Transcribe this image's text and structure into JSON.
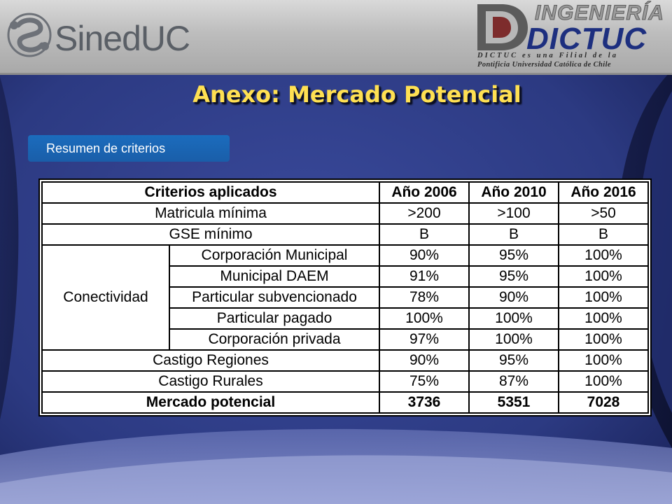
{
  "header": {
    "left_logo_text": "SinedUC",
    "right_logo": {
      "top_word": "INGENIERÍA",
      "main_word": "DICTUC",
      "line1": "DICTUC es una Filial de la",
      "line2": "Pontificia Universidad Católica de Chile"
    }
  },
  "title": "Anexo: Mercado Potencial",
  "section_label": "Resumen de criterios",
  "table": {
    "headers": [
      "Criterios aplicados",
      "Año 2006",
      "Año 2010",
      "Año 2016"
    ],
    "rows": [
      {
        "label": "Matricula mínima",
        "values": [
          ">200",
          ">100",
          ">50"
        ]
      },
      {
        "label": "GSE mínimo",
        "values": [
          "B",
          "B",
          "B"
        ]
      }
    ],
    "group": {
      "label": "Conectividad",
      "rows": [
        {
          "label": "Corporación Municipal",
          "values": [
            "90%",
            "95%",
            "100%"
          ]
        },
        {
          "label": "Municipal DAEM",
          "values": [
            "91%",
            "95%",
            "100%"
          ]
        },
        {
          "label": "Particular subvencionado",
          "values": [
            "78%",
            "90%",
            "100%"
          ]
        },
        {
          "label": "Particular pagado",
          "values": [
            "100%",
            "100%",
            "100%"
          ]
        },
        {
          "label": "Corporación privada",
          "values": [
            "97%",
            "100%",
            "100%"
          ]
        }
      ]
    },
    "rows_after": [
      {
        "label": "Castigo Regiones",
        "values": [
          "90%",
          "95%",
          "100%"
        ]
      },
      {
        "label": "Castigo Rurales",
        "values": [
          "75%",
          "87%",
          "100%"
        ]
      }
    ],
    "total": {
      "label": "Mercado potencial",
      "values": [
        "3736",
        "5351",
        "7028"
      ]
    }
  },
  "colors": {
    "title": "#ffe052",
    "pill": "#1a64b2",
    "background": "#2e3c86"
  }
}
